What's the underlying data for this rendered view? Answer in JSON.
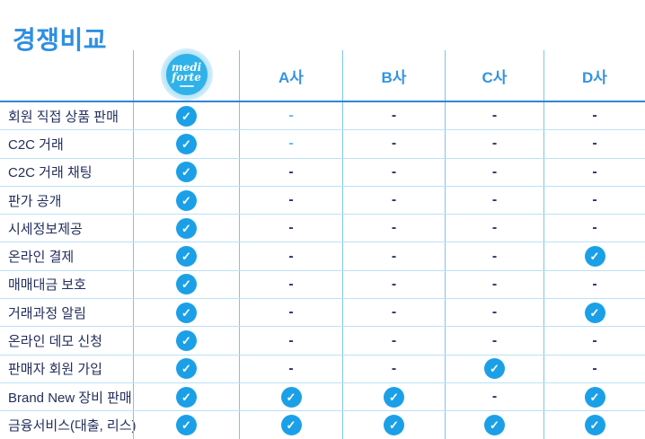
{
  "page_title": "경쟁비교",
  "logo": {
    "line1": "medi",
    "line2": "forte"
  },
  "columns": [
    "A사",
    "B사",
    "C사",
    "D사"
  ],
  "icons": {
    "check": "✓",
    "dash": "-"
  },
  "colors": {
    "title_blue": "#2E8FE2",
    "header_label_blue": "#3493E3",
    "feature_label_navy": "#232E5C",
    "check_circle_blue": "#1BA0E8",
    "dash_dark_navy": "#2A3565",
    "dash_light_blue": "#56BFF3",
    "row_line_light_blue": "#BCE0F7",
    "column_line_blue": "#7CC4EE",
    "header_rule_blue": "#2E86D6",
    "logo_circle_blue": "#2FB2E9",
    "logo_glow_blue": "#CFEDFA"
  },
  "chart_data": {
    "type": "table",
    "title": "경쟁비교",
    "columns": [
      "mediforte",
      "A사",
      "B사",
      "C사",
      "D사"
    ],
    "cell_symbols": {
      "check": "provided (blue circle checkmark)",
      "dash": "not provided (-)",
      "dash-light": "not provided (light blue -)"
    },
    "rows": [
      {
        "feature": "회원 직접 상품 판매",
        "values": [
          "check",
          "dash-light",
          "dash",
          "dash",
          "dash"
        ]
      },
      {
        "feature": "C2C 거래",
        "values": [
          "check",
          "dash-light",
          "dash",
          "dash",
          "dash"
        ]
      },
      {
        "feature": "C2C 거래 채팅",
        "values": [
          "check",
          "dash",
          "dash",
          "dash",
          "dash"
        ]
      },
      {
        "feature": "판가 공개",
        "values": [
          "check",
          "dash",
          "dash",
          "dash",
          "dash"
        ]
      },
      {
        "feature": "시세정보제공",
        "values": [
          "check",
          "dash",
          "dash",
          "dash",
          "dash"
        ]
      },
      {
        "feature": "온라인 결제",
        "values": [
          "check",
          "dash",
          "dash",
          "dash",
          "check"
        ]
      },
      {
        "feature": "매매대금 보호",
        "values": [
          "check",
          "dash",
          "dash",
          "dash",
          "dash"
        ]
      },
      {
        "feature": "거래과정 알림",
        "values": [
          "check",
          "dash",
          "dash",
          "dash",
          "check"
        ]
      },
      {
        "feature": "온라인 데모 신청",
        "values": [
          "check",
          "dash",
          "dash",
          "dash",
          "dash"
        ]
      },
      {
        "feature": "판매자 회원 가입",
        "values": [
          "check",
          "dash",
          "dash",
          "check",
          "dash"
        ]
      },
      {
        "feature": "Brand New 장비 판매",
        "values": [
          "check",
          "check",
          "check",
          "dash",
          "check"
        ]
      },
      {
        "feature": "금융서비스(대출, 리스)",
        "values": [
          "check",
          "check",
          "check",
          "check",
          "check"
        ]
      }
    ]
  }
}
